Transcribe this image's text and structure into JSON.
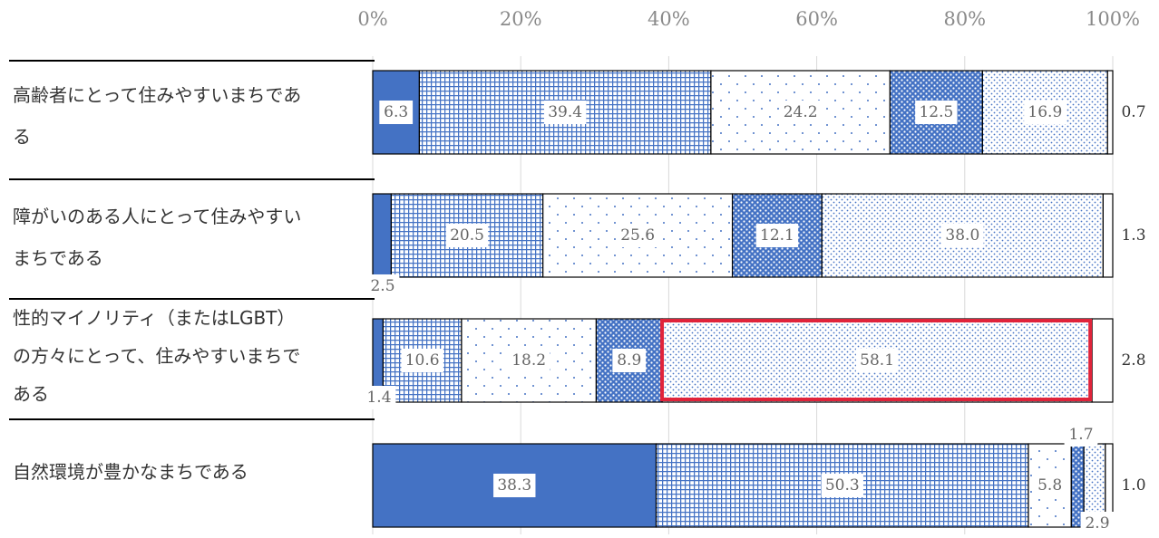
{
  "chart_data": {
    "type": "bar",
    "orientation": "horizontal",
    "stacked": true,
    "x_tick_labels": [
      "0%",
      "20%",
      "40%",
      "60%",
      "80%",
      "100%"
    ],
    "xlim": [
      0,
      100
    ],
    "grid": true,
    "legend": "none",
    "categories": [
      [
        "高齢者にとって住みやすいまちであ",
        "る"
      ],
      [
        "障がいのある人にとって住みやすい",
        "まちである"
      ],
      [
        "性的マイノリティ（またはLGBT）",
        "の方々にとって、住みやすいまちで",
        "ある"
      ],
      [
        "自然環境が豊かなまちである"
      ]
    ],
    "series": [
      {
        "values": [
          6.3,
          2.5,
          1.4,
          38.3
        ],
        "color": "#4472c4",
        "pattern": "solid"
      },
      {
        "values": [
          39.4,
          20.5,
          10.6,
          50.3
        ],
        "color": "#4472c4",
        "pattern": "grid"
      },
      {
        "values": [
          24.2,
          25.6,
          18.2,
          5.8
        ],
        "color": "#4472c4",
        "pattern": "sparse-dots"
      },
      {
        "values": [
          12.5,
          12.1,
          8.9,
          1.7
        ],
        "color": "#4472c4",
        "pattern": "dense-dots"
      },
      {
        "values": [
          16.9,
          38.0,
          58.1,
          2.9
        ],
        "color": "#4472c4",
        "pattern": "fine-dots"
      },
      {
        "values": [
          0.7,
          1.3,
          2.8,
          1.0
        ],
        "color": "#ffffff",
        "pattern": "blank"
      }
    ],
    "highlight": {
      "category_index": 2,
      "series_index": 4,
      "color": "#e0233a"
    }
  }
}
